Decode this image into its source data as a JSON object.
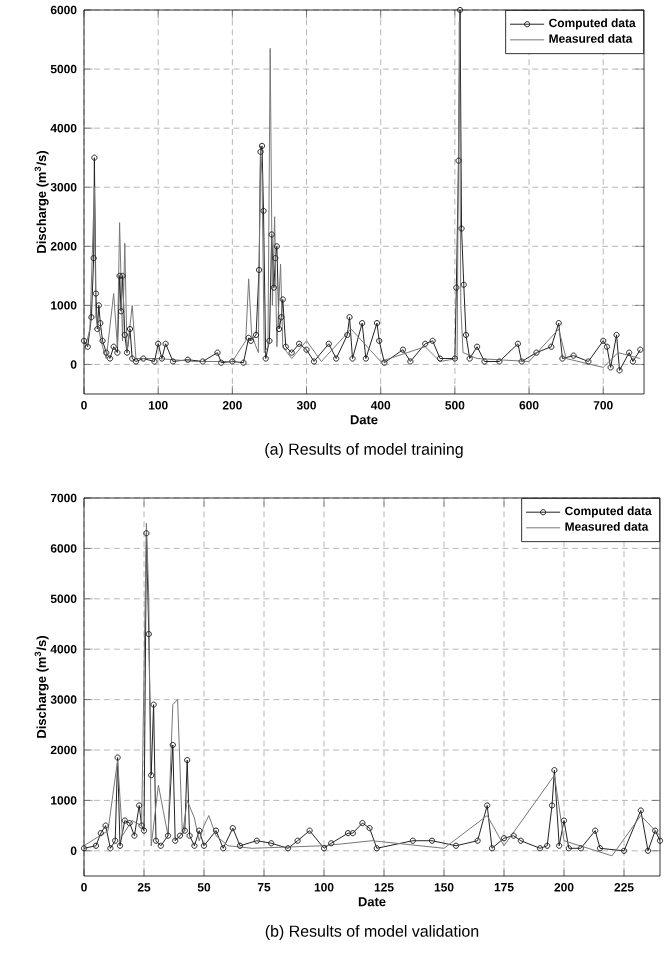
{
  "chart_data": [
    {
      "type": "line",
      "title": "(a) Results of model training",
      "xlabel": "Date",
      "ylabel": "Discharge (m$^{3}$/s)",
      "xlim": [
        0,
        755
      ],
      "ylim": [
        -500,
        6000
      ],
      "xticks": [
        0,
        100,
        200,
        300,
        400,
        500,
        600,
        700
      ],
      "yticks": [
        0,
        1000,
        2000,
        3000,
        4000,
        5000,
        6000
      ],
      "grid": true,
      "legend": "top right",
      "series": [
        {
          "name": "Computed data",
          "color": "#222222",
          "marker": "circle",
          "x": [
            0,
            5,
            10,
            13,
            14,
            16,
            18,
            20,
            22,
            25,
            30,
            35,
            40,
            45,
            48,
            50,
            52,
            55,
            58,
            62,
            65,
            70,
            80,
            95,
            100,
            105,
            110,
            120,
            140,
            160,
            180,
            185,
            200,
            215,
            222,
            225,
            232,
            236,
            238,
            240,
            242,
            245,
            250,
            253,
            256,
            258,
            260,
            263,
            266,
            268,
            272,
            280,
            290,
            300,
            310,
            330,
            340,
            355,
            358,
            362,
            375,
            380,
            395,
            398,
            405,
            430,
            440,
            460,
            470,
            480,
            500,
            502,
            505,
            507,
            509,
            512,
            515,
            520,
            530,
            540,
            560,
            585,
            590,
            610,
            630,
            640,
            645,
            660,
            680,
            700,
            705,
            710,
            718,
            722,
            735,
            740,
            750
          ],
          "values": [
            400,
            300,
            800,
            1800,
            3500,
            1200,
            600,
            1000,
            700,
            400,
            200,
            100,
            300,
            200,
            1500,
            900,
            1500,
            500,
            200,
            600,
            100,
            50,
            100,
            50,
            350,
            100,
            350,
            50,
            80,
            50,
            200,
            30,
            50,
            30,
            450,
            400,
            500,
            1600,
            3600,
            3700,
            2600,
            100,
            400,
            2200,
            1300,
            1800,
            2000,
            600,
            800,
            1100,
            300,
            200,
            350,
            250,
            50,
            350,
            100,
            500,
            800,
            100,
            700,
            100,
            700,
            400,
            30,
            250,
            50,
            350,
            400,
            100,
            100,
            1300,
            3450,
            6000,
            2300,
            1350,
            500,
            100,
            300,
            50,
            50,
            350,
            50,
            200,
            300,
            700,
            100,
            150,
            50,
            400,
            300,
            -50,
            500,
            -100,
            200,
            50,
            250
          ]
        },
        {
          "name": "Measured data",
          "color": "#777777",
          "marker": "none",
          "x": [
            0,
            8,
            14,
            16,
            25,
            30,
            40,
            45,
            48,
            52,
            55,
            58,
            65,
            70,
            100,
            150,
            200,
            218,
            222,
            226,
            235,
            238,
            240,
            243,
            248,
            251,
            254,
            257,
            260,
            265,
            268,
            280,
            300,
            320,
            360,
            400,
            460,
            480,
            503,
            506,
            508,
            511,
            530,
            600,
            640,
            650,
            700,
            720,
            750
          ],
          "values": [
            200,
            600,
            3000,
            800,
            300,
            100,
            1200,
            300,
            2400,
            400,
            2050,
            200,
            1000,
            100,
            100,
            50,
            50,
            400,
            1450,
            500,
            200,
            3700,
            3200,
            200,
            300,
            5350,
            1000,
            2500,
            300,
            1700,
            300,
            100,
            400,
            50,
            600,
            50,
            300,
            50,
            100,
            5800,
            1000,
            200,
            100,
            50,
            600,
            100,
            -50,
            200,
            100
          ]
        }
      ]
    },
    {
      "type": "line",
      "title": "(b) Results of model validation",
      "xlabel": "Date",
      "ylabel": "Discharge (m$^{3}$/s)",
      "xlim": [
        0,
        240
      ],
      "ylim": [
        -500,
        7000
      ],
      "xticks": [
        0,
        25,
        50,
        75,
        100,
        125,
        150,
        175,
        200,
        225
      ],
      "yticks": [
        0,
        1000,
        2000,
        3000,
        4000,
        5000,
        6000,
        7000
      ],
      "grid": true,
      "legend": "top right",
      "series": [
        {
          "name": "Computed data",
          "color": "#222222",
          "marker": "circle",
          "x": [
            0,
            5,
            7,
            9,
            11,
            13,
            14,
            15,
            17,
            19,
            21,
            23,
            24,
            25,
            26,
            27,
            28,
            29,
            30,
            32,
            35,
            37,
            38,
            40,
            42,
            43,
            44,
            46,
            48,
            50,
            55,
            58,
            62,
            65,
            72,
            78,
            85,
            89,
            94,
            100,
            103,
            110,
            112,
            116,
            119,
            122,
            137,
            145,
            155,
            164,
            168,
            170,
            175,
            179,
            182,
            190,
            193,
            195,
            196,
            198,
            200,
            202,
            207,
            213,
            215,
            225,
            232,
            235,
            238,
            240
          ],
          "values": [
            50,
            100,
            350,
            500,
            50,
            200,
            1850,
            100,
            600,
            550,
            300,
            900,
            500,
            400,
            6300,
            4300,
            1500,
            2900,
            200,
            100,
            300,
            2100,
            200,
            300,
            400,
            1800,
            300,
            100,
            400,
            100,
            400,
            50,
            450,
            100,
            200,
            150,
            50,
            200,
            400,
            50,
            150,
            350,
            350,
            550,
            450,
            50,
            200,
            200,
            100,
            200,
            900,
            50,
            250,
            300,
            200,
            50,
            100,
            900,
            1600,
            100,
            600,
            50,
            50,
            400,
            50,
            0,
            800,
            0,
            400,
            200
          ]
        },
        {
          "name": "Measured data",
          "color": "#777777",
          "marker": "none",
          "x": [
            0,
            10,
            14,
            16,
            20,
            24,
            26,
            27,
            28,
            31,
            33,
            35,
            37,
            39,
            41,
            43,
            46,
            48,
            50,
            52,
            55,
            60,
            70,
            100,
            120,
            150,
            168,
            175,
            196,
            200,
            220,
            232,
            240
          ],
          "values": [
            100,
            400,
            1800,
            300,
            600,
            500,
            6500,
            5000,
            100,
            1300,
            800,
            300,
            2900,
            3000,
            300,
            1000,
            650,
            200,
            500,
            700,
            300,
            100,
            50,
            100,
            200,
            50,
            700,
            100,
            1500,
            200,
            -100,
            700,
            300
          ]
        }
      ]
    }
  ]
}
